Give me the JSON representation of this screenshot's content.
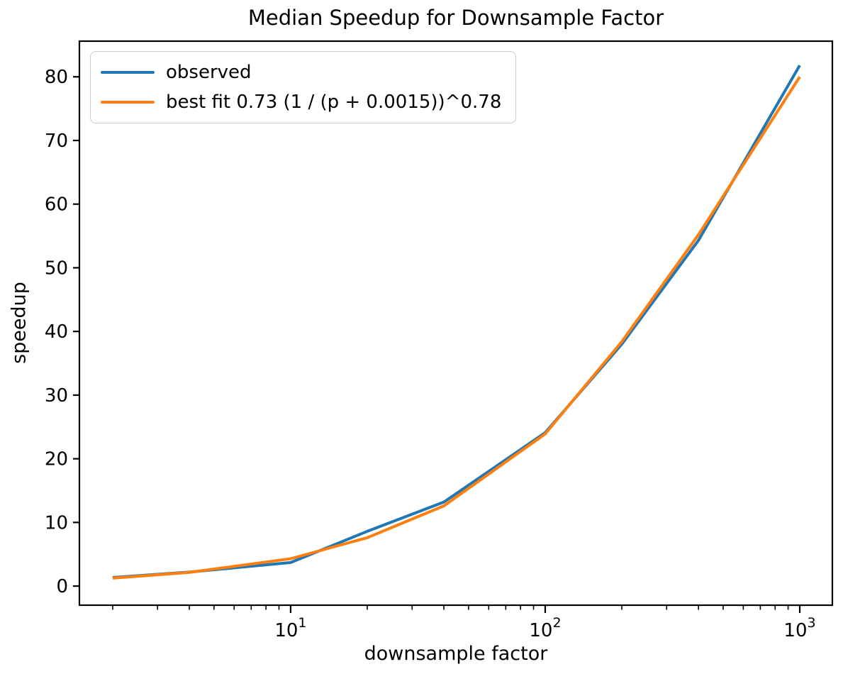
{
  "chart_data": {
    "type": "line",
    "title": "Median Speedup for Downsample Factor",
    "xlabel": "downsample factor",
    "ylabel": "speedup",
    "x_scale": "log",
    "grid": false,
    "legend_position": "upper left",
    "xlim": [
      1.48,
      1343
    ],
    "ylim": [
      -3.0,
      85.6
    ],
    "x": [
      2,
      4,
      10,
      20,
      40,
      100,
      200,
      400,
      1000
    ],
    "series": [
      {
        "name": "observed",
        "label": "observed",
        "color": "#1f77b4",
        "values": [
          1.35,
          2.2,
          3.7,
          8.6,
          13.2,
          24.1,
          38.0,
          54.3,
          81.8
        ]
      },
      {
        "name": "best_fit",
        "label": "best fit 0.73 (1 / (p + 0.0015))^0.78",
        "color": "#ff7f0e",
        "values": [
          1.25,
          2.15,
          4.3,
          7.6,
          12.6,
          23.9,
          38.4,
          55.2,
          80.0
        ]
      }
    ],
    "y_ticks": [
      0,
      10,
      20,
      30,
      40,
      50,
      60,
      70,
      80
    ],
    "x_major_ticks": [
      {
        "value": 10,
        "base": "10",
        "exp": "1"
      },
      {
        "value": 100,
        "base": "10",
        "exp": "2"
      },
      {
        "value": 1000,
        "base": "10",
        "exp": "3"
      }
    ],
    "x_minor_subs": [
      2,
      3,
      4,
      5,
      6,
      7,
      8,
      9
    ],
    "x_minor_decades": [
      1,
      10,
      100
    ],
    "axis_color": "#000000",
    "text_color": "#000000"
  }
}
